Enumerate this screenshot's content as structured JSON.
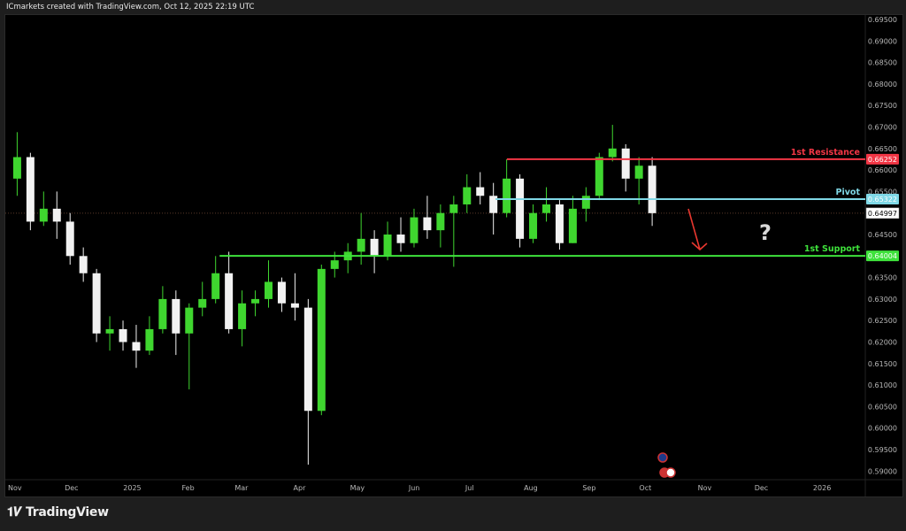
{
  "header": {
    "text": "ICmarkets created with TradingView.com, Oct 12, 2025 22:19 UTC"
  },
  "footer": {
    "brand": "TradingView",
    "logo_mark": "TV"
  },
  "colors": {
    "up": "#3fd62f",
    "down": "#f2f2f2",
    "resistance": "#f23645",
    "pivot": "#7fd8e6",
    "support": "#3ee23b",
    "arrow": "#e8372f"
  },
  "chart_data": {
    "type": "candlestick",
    "title": "",
    "ylim": [
      0.5875,
      0.6975
    ],
    "y_ticks": [
      "0.69500",
      "0.69000",
      "0.68500",
      "0.68000",
      "0.67500",
      "0.67000",
      "0.66500",
      "0.66000",
      "0.65500",
      "0.64500",
      "0.63500",
      "0.63000",
      "0.62500",
      "0.62000",
      "0.61500",
      "0.61000",
      "0.60500",
      "0.60000",
      "0.59500",
      "0.59000"
    ],
    "x_ticks": [
      {
        "label": "Nov",
        "date": "2024-11-01"
      },
      {
        "label": "Dec",
        "date": "2024-12-01"
      },
      {
        "label": "2025",
        "date": "2025-01-01"
      },
      {
        "label": "Feb",
        "date": "2025-02-01"
      },
      {
        "label": "Mar",
        "date": "2025-03-01"
      },
      {
        "label": "Apr",
        "date": "2025-04-01"
      },
      {
        "label": "May",
        "date": "2025-05-01"
      },
      {
        "label": "Jun",
        "date": "2025-06-01"
      },
      {
        "label": "Jul",
        "date": "2025-07-01"
      },
      {
        "label": "Aug",
        "date": "2025-08-01"
      },
      {
        "label": "Sep",
        "date": "2025-09-01"
      },
      {
        "label": "Oct",
        "date": "2025-10-01"
      },
      {
        "label": "Nov",
        "date": "2025-11-01"
      },
      {
        "label": "Dec",
        "date": "2025-12-01"
      },
      {
        "label": "2026",
        "date": "2026-01-01"
      }
    ],
    "current_price": "0.64997",
    "levels": [
      {
        "name": "1st Resistance",
        "value": "0.66252",
        "from": "2025-07-23",
        "color": "#f23645"
      },
      {
        "name": "Pivot",
        "value": "0.65322",
        "from": "2025-07-17",
        "color": "#7fd8e6"
      },
      {
        "name": "1st Support",
        "value": "0.64004",
        "from": "2025-02-21",
        "color": "#3ee23b"
      }
    ],
    "annotations": {
      "question_mark": "?",
      "arrow": "bearish (down)"
    },
    "candles": [
      [
        "2024-11-04",
        0.658,
        0.6688,
        0.654,
        0.663
      ],
      [
        "2024-11-11",
        0.663,
        0.664,
        0.646,
        0.648
      ],
      [
        "2024-11-18",
        0.648,
        0.655,
        0.647,
        0.651
      ],
      [
        "2024-11-25",
        0.651,
        0.655,
        0.644,
        0.648
      ],
      [
        "2024-12-02",
        0.648,
        0.65,
        0.638,
        0.64
      ],
      [
        "2024-12-09",
        0.64,
        0.642,
        0.634,
        0.636
      ],
      [
        "2024-12-16",
        0.636,
        0.637,
        0.62,
        0.622
      ],
      [
        "2024-12-23",
        0.622,
        0.626,
        0.618,
        0.623
      ],
      [
        "2024-12-30",
        0.623,
        0.625,
        0.618,
        0.62
      ],
      [
        "2025-01-06",
        0.62,
        0.624,
        0.614,
        0.618
      ],
      [
        "2025-01-13",
        0.618,
        0.626,
        0.617,
        0.623
      ],
      [
        "2025-01-20",
        0.623,
        0.633,
        0.622,
        0.63
      ],
      [
        "2025-01-27",
        0.63,
        0.632,
        0.617,
        0.622
      ],
      [
        "2025-02-03",
        0.622,
        0.629,
        0.609,
        0.628
      ],
      [
        "2025-02-10",
        0.628,
        0.634,
        0.626,
        0.63
      ],
      [
        "2025-02-17",
        0.63,
        0.64,
        0.629,
        0.636
      ],
      [
        "2025-02-24",
        0.636,
        0.641,
        0.622,
        0.623
      ],
      [
        "2025-03-03",
        0.623,
        0.632,
        0.619,
        0.629
      ],
      [
        "2025-03-10",
        0.629,
        0.632,
        0.626,
        0.63
      ],
      [
        "2025-03-17",
        0.63,
        0.639,
        0.628,
        0.634
      ],
      [
        "2025-03-24",
        0.634,
        0.635,
        0.627,
        0.629
      ],
      [
        "2025-03-31",
        0.629,
        0.636,
        0.625,
        0.628
      ],
      [
        "2025-04-07",
        0.628,
        0.63,
        0.5915,
        0.604
      ],
      [
        "2025-04-14",
        0.604,
        0.638,
        0.603,
        0.637
      ],
      [
        "2025-04-21",
        0.637,
        0.641,
        0.635,
        0.639
      ],
      [
        "2025-04-28",
        0.639,
        0.643,
        0.636,
        0.641
      ],
      [
        "2025-05-05",
        0.641,
        0.65,
        0.638,
        0.644
      ],
      [
        "2025-05-12",
        0.644,
        0.646,
        0.636,
        0.64
      ],
      [
        "2025-05-19",
        0.64,
        0.648,
        0.639,
        0.645
      ],
      [
        "2025-05-26",
        0.645,
        0.649,
        0.641,
        0.643
      ],
      [
        "2025-06-02",
        0.643,
        0.651,
        0.642,
        0.649
      ],
      [
        "2025-06-09",
        0.649,
        0.654,
        0.644,
        0.646
      ],
      [
        "2025-06-16",
        0.646,
        0.652,
        0.642,
        0.65
      ],
      [
        "2025-06-23",
        0.65,
        0.654,
        0.6375,
        0.652
      ],
      [
        "2025-06-30",
        0.652,
        0.659,
        0.65,
        0.656
      ],
      [
        "2025-07-07",
        0.656,
        0.6595,
        0.652,
        0.654
      ],
      [
        "2025-07-14",
        0.654,
        0.657,
        0.645,
        0.65
      ],
      [
        "2025-07-21",
        0.65,
        0.6625,
        0.649,
        0.658
      ],
      [
        "2025-07-28",
        0.658,
        0.659,
        0.642,
        0.644
      ],
      [
        "2025-08-04",
        0.644,
        0.652,
        0.643,
        0.65
      ],
      [
        "2025-08-11",
        0.65,
        0.656,
        0.648,
        0.652
      ],
      [
        "2025-08-18",
        0.652,
        0.653,
        0.6415,
        0.643
      ],
      [
        "2025-08-25",
        0.643,
        0.654,
        0.643,
        0.651
      ],
      [
        "2025-09-01",
        0.651,
        0.656,
        0.648,
        0.654
      ],
      [
        "2025-09-08",
        0.654,
        0.664,
        0.653,
        0.663
      ],
      [
        "2025-09-15",
        0.663,
        0.6705,
        0.662,
        0.665
      ],
      [
        "2025-09-22",
        0.665,
        0.666,
        0.655,
        0.658
      ],
      [
        "2025-09-29",
        0.658,
        0.663,
        0.652,
        0.661
      ],
      [
        "2025-10-06",
        0.661,
        0.663,
        0.647,
        0.64997
      ]
    ]
  }
}
